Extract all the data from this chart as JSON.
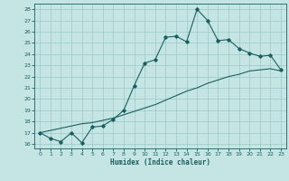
{
  "xlabel": "Humidex (Indice chaleur)",
  "bg_color": "#c5e5e5",
  "grid_color": "#9cc8c8",
  "line_color": "#1a5f5f",
  "xlim": [
    -0.5,
    23.5
  ],
  "ylim": [
    15.6,
    28.5
  ],
  "xticks": [
    0,
    1,
    2,
    3,
    4,
    5,
    6,
    7,
    8,
    9,
    10,
    11,
    12,
    13,
    14,
    15,
    16,
    17,
    18,
    19,
    20,
    21,
    22,
    23
  ],
  "yticks": [
    16,
    17,
    18,
    19,
    20,
    21,
    22,
    23,
    24,
    25,
    26,
    27,
    28
  ],
  "jagged_y": [
    17.0,
    16.5,
    16.2,
    17.0,
    16.1,
    17.5,
    17.6,
    18.2,
    19.0,
    21.2,
    23.2,
    23.5,
    25.5,
    25.6,
    25.1,
    28.0,
    27.0,
    25.2,
    25.3,
    24.5,
    24.1,
    23.8,
    23.9,
    22.6
  ],
  "smooth_y": [
    17.0,
    17.2,
    17.4,
    17.6,
    17.8,
    17.9,
    18.1,
    18.3,
    18.6,
    18.9,
    19.2,
    19.5,
    19.9,
    20.3,
    20.7,
    21.0,
    21.4,
    21.7,
    22.0,
    22.2,
    22.5,
    22.6,
    22.7,
    22.5
  ]
}
